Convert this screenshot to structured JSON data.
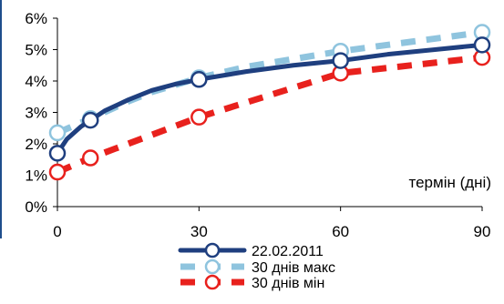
{
  "chart_data": {
    "type": "line",
    "xlabel": "термін (дні)",
    "ylabel": "",
    "x_ticks": [
      "0",
      "30",
      "60",
      "90"
    ],
    "y_ticks": [
      "0%",
      "1%",
      "2%",
      "3%",
      "4%",
      "5%",
      "6%"
    ],
    "xlim": [
      0,
      90
    ],
    "ylim": [
      0,
      6
    ],
    "grid": false,
    "legend_position": "bottom",
    "series": [
      {
        "name": "22.02.2011",
        "color": "#1f3f7f",
        "style": "solid",
        "marker_x": [
          0,
          7,
          30,
          60,
          90
        ],
        "marker_y": [
          1.7,
          2.75,
          4.05,
          4.65,
          5.15
        ],
        "curve_x": [
          0,
          2,
          5,
          7,
          10,
          15,
          20,
          25,
          30,
          40,
          50,
          60,
          70,
          80,
          90
        ],
        "curve_y": [
          1.7,
          2.15,
          2.55,
          2.75,
          3.05,
          3.4,
          3.7,
          3.9,
          4.05,
          4.3,
          4.5,
          4.65,
          4.85,
          5.0,
          5.15
        ]
      },
      {
        "name": "30 днів макс",
        "color": "#8fc4de",
        "style": "dashed",
        "marker_x": [
          0,
          7,
          30,
          60,
          90
        ],
        "marker_y": [
          2.35,
          2.8,
          4.1,
          4.95,
          5.55
        ],
        "curve_x": [
          0,
          7,
          15,
          20,
          30,
          40,
          50,
          60,
          70,
          80,
          90
        ],
        "curve_y": [
          2.35,
          2.8,
          3.35,
          3.65,
          4.1,
          4.45,
          4.7,
          4.95,
          5.15,
          5.35,
          5.55
        ]
      },
      {
        "name": "30 днів мін",
        "color": "#e8211d",
        "style": "dashed",
        "marker_x": [
          0,
          7,
          30,
          60,
          90
        ],
        "marker_y": [
          1.1,
          1.55,
          2.85,
          4.25,
          4.75
        ],
        "curve_x": [
          0,
          7,
          30,
          60,
          90
        ],
        "curve_y": [
          1.1,
          1.55,
          2.85,
          4.25,
          4.75
        ]
      }
    ]
  }
}
